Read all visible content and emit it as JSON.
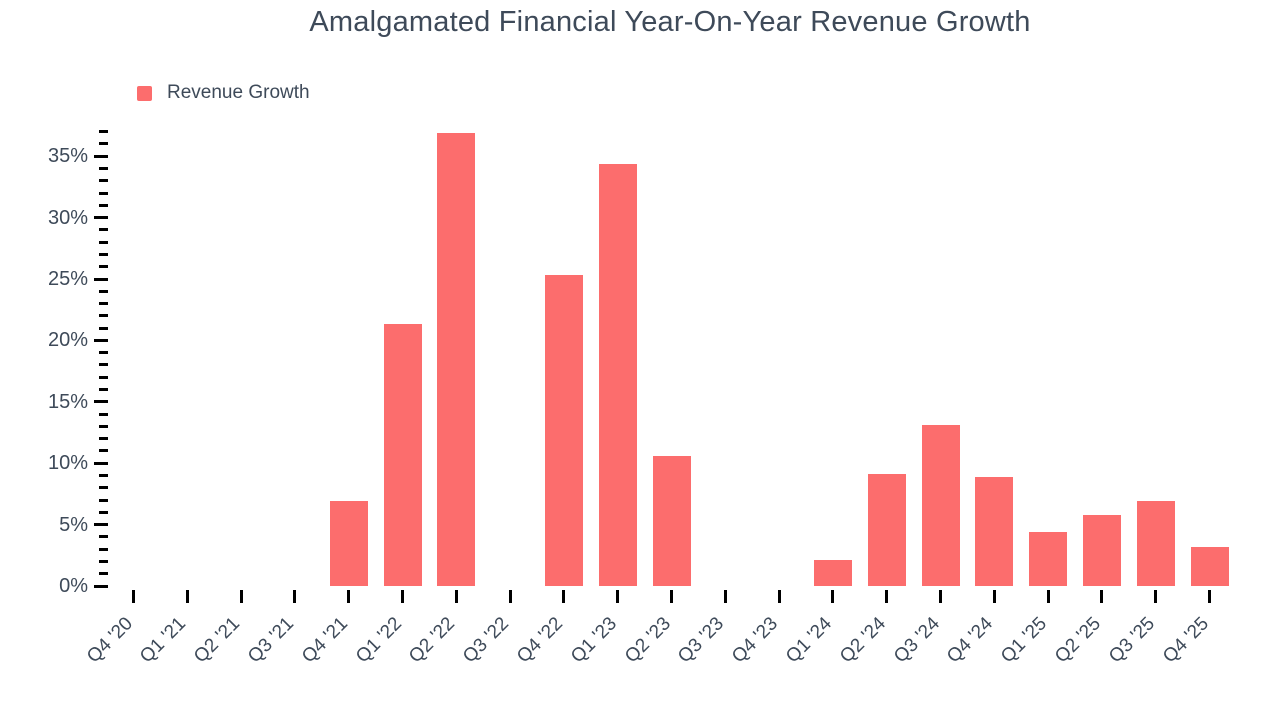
{
  "chart": {
    "title": "Amalgamated Financial Year-On-Year Revenue Growth",
    "legend_label": "Revenue Growth"
  },
  "colors": {
    "bar": "#FC6D6D",
    "text": "#3E4A59",
    "tick": "#000000",
    "background": "#FFFFFF"
  },
  "chart_data": {
    "type": "bar",
    "title": "Amalgamated Financial Year-On-Year Revenue Growth",
    "categories": [
      "Q4 '20",
      "Q1 '21",
      "Q2 '21",
      "Q3 '21",
      "Q4 '21",
      "Q1 '22",
      "Q2 '22",
      "Q3 '22",
      "Q4 '22",
      "Q1 '23",
      "Q2 '23",
      "Q3 '23",
      "Q4 '23",
      "Q1 '24",
      "Q2 '24",
      "Q3 '24",
      "Q4 '24",
      "Q1 '25",
      "Q2 '25",
      "Q3 '25",
      "Q4 '25"
    ],
    "series": [
      {
        "name": "Revenue Growth",
        "values": [
          0,
          0,
          0,
          0,
          6.9,
          21.3,
          36.9,
          0,
          25.3,
          34.4,
          10.6,
          0,
          0,
          2.1,
          9.1,
          13.1,
          8.9,
          4.4,
          5.8,
          6.9,
          3.2
        ]
      }
    ],
    "xlabel": "",
    "ylabel": "",
    "ylim": [
      0,
      37
    ],
    "y_major_tick_step": 5,
    "y_minor_tick_step": 1,
    "y_tick_suffix": "%",
    "y_tick_labels": [
      "0%",
      "5%",
      "10%",
      "15%",
      "20%",
      "25%",
      "30%",
      "35%"
    ],
    "legend_position": "top-left",
    "legend_entries": [
      "Revenue Growth"
    ],
    "grid": false,
    "bar_color": "#FC6D6D"
  }
}
